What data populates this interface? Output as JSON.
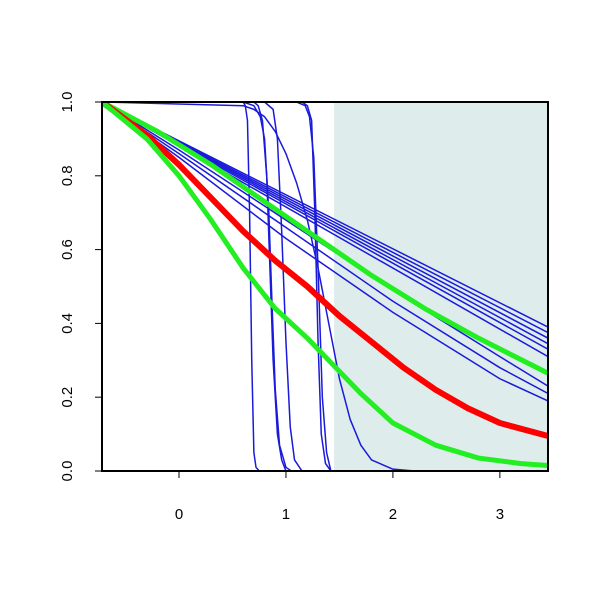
{
  "chart_data": {
    "type": "line",
    "title": "",
    "xlabel": "",
    "ylabel": "",
    "xlim": [
      -0.72,
      3.45
    ],
    "ylim": [
      0,
      1
    ],
    "x_ticks": [
      0,
      1,
      2,
      3
    ],
    "x_tick_labels": [
      "0",
      "1",
      "2",
      "3"
    ],
    "y_ticks": [
      0.0,
      0.2,
      0.4,
      0.6,
      0.8,
      1.0
    ],
    "y_tick_labels": [
      "0.0",
      "0.2",
      "0.4",
      "0.6",
      "0.8",
      "1.0"
    ],
    "grid": false,
    "legend": "none",
    "shaded_region": {
      "x_from": 1.45,
      "x_to": 3.45,
      "color": "#deecec"
    },
    "colors": {
      "blue": "#1a1adb",
      "red": "#ff0000",
      "green": "#22ee22"
    },
    "series": [
      {
        "color": "blue",
        "width": 1.5,
        "x": [
          -0.72,
          0.6,
          0.62,
          0.64,
          0.66,
          0.68,
          0.7,
          0.72,
          0.75,
          3.45
        ],
        "y": [
          1,
          1,
          0.99,
          0.95,
          0.7,
          0.3,
          0.05,
          0.01,
          0,
          0
        ]
      },
      {
        "color": "blue",
        "width": 1.5,
        "x": [
          -0.72,
          0.7,
          0.74,
          0.78,
          0.82,
          0.85,
          0.88,
          0.92,
          0.96,
          1.0,
          3.45
        ],
        "y": [
          1,
          1,
          0.99,
          0.95,
          0.8,
          0.55,
          0.3,
          0.1,
          0.03,
          0,
          0
        ]
      },
      {
        "color": "blue",
        "width": 1.5,
        "x": [
          -0.72,
          0.6,
          0.7,
          0.76,
          0.8,
          0.84,
          0.87,
          0.9,
          0.94,
          1.0,
          1.05,
          3.45
        ],
        "y": [
          1,
          1,
          0.99,
          0.96,
          0.9,
          0.7,
          0.45,
          0.22,
          0.07,
          0.01,
          0,
          0
        ]
      },
      {
        "color": "blue",
        "width": 1.5,
        "x": [
          -0.72,
          0.8,
          0.88,
          0.92,
          0.96,
          1.0,
          1.04,
          1.08,
          1.15,
          3.45
        ],
        "y": [
          1,
          1,
          0.98,
          0.9,
          0.65,
          0.35,
          0.12,
          0.03,
          0,
          0
        ]
      },
      {
        "color": "blue",
        "width": 1.5,
        "x": [
          -0.72,
          1.15,
          1.2,
          1.24,
          1.27,
          1.3,
          1.33,
          1.37,
          1.42,
          3.45
        ],
        "y": [
          1,
          1,
          0.99,
          0.95,
          0.7,
          0.35,
          0.1,
          0.02,
          0,
          0
        ]
      },
      {
        "color": "blue",
        "width": 1.5,
        "x": [
          -0.72,
          1.1,
          1.18,
          1.22,
          1.26,
          1.3,
          1.34,
          1.38,
          1.42,
          3.45
        ],
        "y": [
          1,
          1,
          0.99,
          0.96,
          0.85,
          0.55,
          0.2,
          0.05,
          0,
          0
        ]
      },
      {
        "color": "blue",
        "width": 1.5,
        "x": [
          -0.72,
          0.6,
          0.7,
          0.8,
          0.9,
          1.0,
          1.1,
          1.2,
          1.3,
          1.4,
          1.5,
          1.6,
          1.7,
          1.8,
          2.0,
          2.2,
          3.45
        ],
        "y": [
          1,
          0.99,
          0.98,
          0.96,
          0.92,
          0.86,
          0.78,
          0.68,
          0.55,
          0.4,
          0.25,
          0.14,
          0.07,
          0.03,
          0.005,
          0,
          0
        ]
      },
      {
        "color": "blue",
        "width": 1.5,
        "x": [
          -0.72,
          3.45
        ],
        "y": [
          1,
          0.39
        ]
      },
      {
        "color": "blue",
        "width": 1.5,
        "x": [
          -0.72,
          3.45
        ],
        "y": [
          1,
          0.375
        ]
      },
      {
        "color": "blue",
        "width": 1.5,
        "x": [
          -0.72,
          3.45
        ],
        "y": [
          1,
          0.36
        ]
      },
      {
        "color": "blue",
        "width": 1.5,
        "x": [
          -0.72,
          3.45
        ],
        "y": [
          1,
          0.345
        ]
      },
      {
        "color": "blue",
        "width": 1.5,
        "x": [
          -0.72,
          3.45
        ],
        "y": [
          1,
          0.33
        ]
      },
      {
        "color": "blue",
        "width": 1.5,
        "x": [
          -0.72,
          3.45
        ],
        "y": [
          1,
          0.31
        ]
      },
      {
        "color": "blue",
        "width": 1.5,
        "x": [
          -0.72,
          0.0,
          1.0,
          2.0,
          3.0,
          3.45
        ],
        "y": [
          1,
          0.87,
          0.68,
          0.49,
          0.31,
          0.23
        ]
      },
      {
        "color": "blue",
        "width": 1.5,
        "x": [
          -0.72,
          0.0,
          1.0,
          2.0,
          3.0,
          3.45
        ],
        "y": [
          1,
          0.86,
          0.66,
          0.46,
          0.28,
          0.21
        ]
      },
      {
        "color": "blue",
        "width": 1.5,
        "x": [
          -0.72,
          0.0,
          1.0,
          2.0,
          3.0,
          3.45
        ],
        "y": [
          1,
          0.85,
          0.63,
          0.43,
          0.25,
          0.19
        ]
      },
      {
        "color": "green",
        "width": 5,
        "x": [
          -0.72,
          -0.2,
          0.3,
          0.8,
          1.3,
          1.8,
          2.3,
          2.8,
          3.45
        ],
        "y": [
          1,
          0.92,
          0.83,
          0.73,
          0.63,
          0.53,
          0.44,
          0.36,
          0.265
        ]
      },
      {
        "color": "red",
        "width": 6,
        "x": [
          -0.72,
          -0.3,
          0.0,
          0.3,
          0.6,
          0.9,
          1.2,
          1.5,
          1.8,
          2.1,
          2.4,
          2.7,
          3.0,
          3.45
        ],
        "y": [
          1,
          0.91,
          0.83,
          0.74,
          0.65,
          0.57,
          0.5,
          0.42,
          0.35,
          0.28,
          0.22,
          0.17,
          0.13,
          0.095
        ]
      },
      {
        "color": "green",
        "width": 5,
        "x": [
          -0.72,
          -0.3,
          0.0,
          0.3,
          0.6,
          0.9,
          1.2,
          1.4,
          1.7,
          2.0,
          2.4,
          2.8,
          3.2,
          3.45
        ],
        "y": [
          1,
          0.9,
          0.8,
          0.68,
          0.55,
          0.44,
          0.36,
          0.3,
          0.21,
          0.13,
          0.07,
          0.035,
          0.02,
          0.015
        ]
      }
    ]
  }
}
